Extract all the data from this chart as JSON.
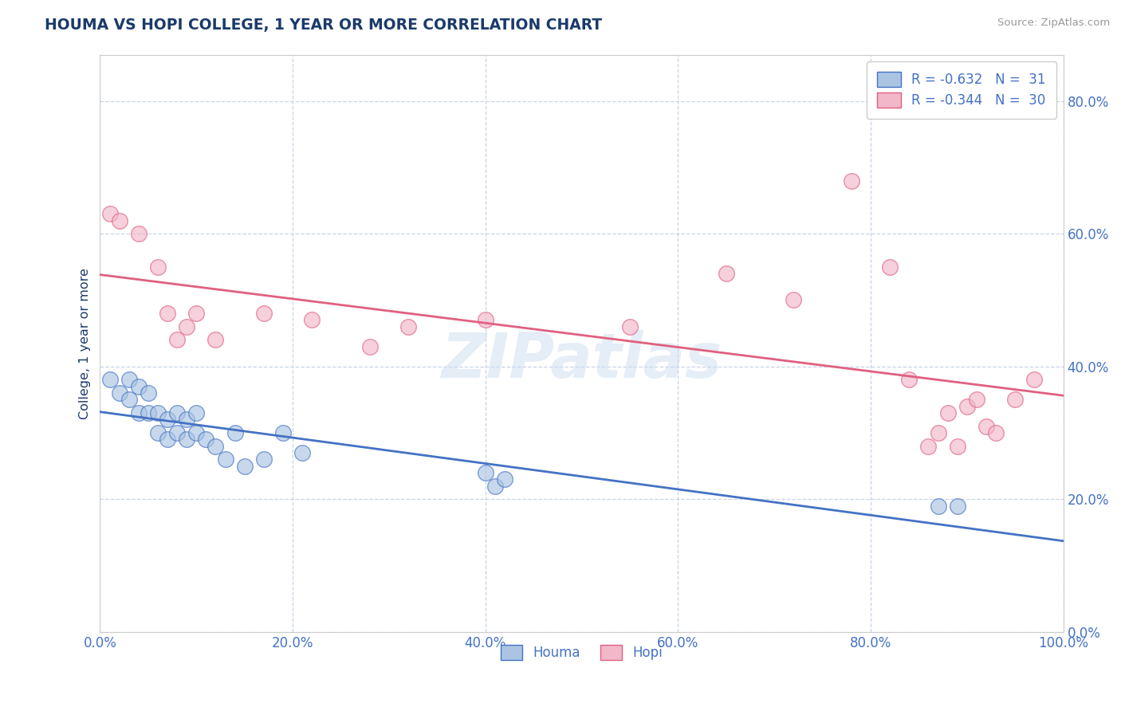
{
  "title": "HOUMA VS HOPI COLLEGE, 1 YEAR OR MORE CORRELATION CHART",
  "ylabel": "College, 1 year or more",
  "source_text": "Source: ZipAtlas.com",
  "watermark": "ZIPatlas",
  "xmin": 0.0,
  "xmax": 1.0,
  "ymin": 0.0,
  "ymax": 0.87,
  "yticks": [
    0.0,
    0.2,
    0.4,
    0.6,
    0.8
  ],
  "ytick_labels": [
    "0.0%",
    "20.0%",
    "40.0%",
    "60.0%",
    "80.0%"
  ],
  "xticks": [
    0.0,
    0.2,
    0.4,
    0.6,
    0.8,
    1.0
  ],
  "xtick_labels": [
    "0.0%",
    "20.0%",
    "40.0%",
    "60.0%",
    "80.0%",
    "100.0%"
  ],
  "houma_color": "#aac4e2",
  "hopi_color": "#f2b8ca",
  "houma_line_color": "#4472c4",
  "hopi_line_color": "#e06080",
  "houma_R": -0.632,
  "houma_N": 31,
  "hopi_R": -0.344,
  "hopi_N": 30,
  "houma_x": [
    0.01,
    0.02,
    0.03,
    0.03,
    0.04,
    0.04,
    0.05,
    0.05,
    0.06,
    0.06,
    0.07,
    0.07,
    0.08,
    0.08,
    0.09,
    0.09,
    0.1,
    0.1,
    0.11,
    0.12,
    0.13,
    0.14,
    0.15,
    0.17,
    0.19,
    0.21,
    0.4,
    0.41,
    0.42,
    0.87,
    0.89
  ],
  "houma_y": [
    0.38,
    0.36,
    0.38,
    0.35,
    0.33,
    0.37,
    0.36,
    0.33,
    0.33,
    0.3,
    0.32,
    0.29,
    0.3,
    0.33,
    0.32,
    0.29,
    0.3,
    0.33,
    0.29,
    0.28,
    0.26,
    0.3,
    0.25,
    0.26,
    0.3,
    0.27,
    0.24,
    0.22,
    0.23,
    0.19,
    0.19
  ],
  "hopi_x": [
    0.01,
    0.02,
    0.04,
    0.06,
    0.07,
    0.08,
    0.09,
    0.1,
    0.12,
    0.17,
    0.22,
    0.28,
    0.32,
    0.4,
    0.55,
    0.65,
    0.72,
    0.78,
    0.82,
    0.84,
    0.86,
    0.87,
    0.88,
    0.89,
    0.9,
    0.91,
    0.92,
    0.93,
    0.95,
    0.97
  ],
  "hopi_y": [
    0.63,
    0.62,
    0.6,
    0.55,
    0.48,
    0.44,
    0.46,
    0.48,
    0.44,
    0.48,
    0.47,
    0.43,
    0.46,
    0.47,
    0.46,
    0.54,
    0.5,
    0.68,
    0.55,
    0.38,
    0.28,
    0.3,
    0.33,
    0.28,
    0.34,
    0.35,
    0.31,
    0.3,
    0.35,
    0.38
  ],
  "title_color": "#1a3a6b",
  "axis_label_color": "#4472c4",
  "tick_color": "#4472c4",
  "grid_color": "#c8d4e8",
  "background_color": "#ffffff"
}
